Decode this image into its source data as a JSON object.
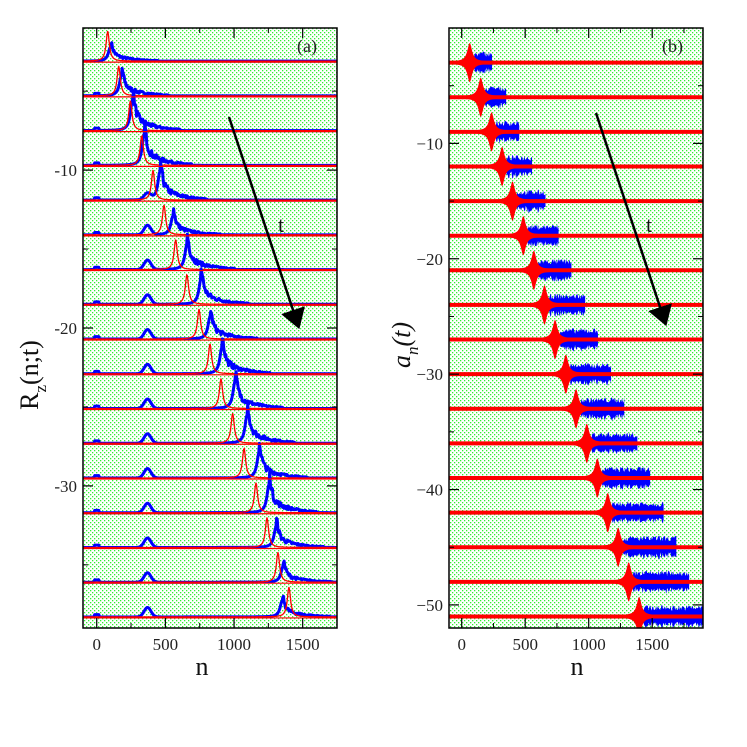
{
  "colors": {
    "background_dots": "#33ee33",
    "red_series": "#ff0000",
    "blue_series": "#0000ff",
    "arrow": "#000000"
  },
  "chart_data": [
    {
      "type": "line",
      "panel_label": "(a)",
      "xlabel": "n",
      "ylabel": "R",
      "ylabel_sub": "z",
      "ylabel_args": "(n;t)",
      "xlim": [
        -100,
        1750
      ],
      "ylim": [
        -39,
        -1
      ],
      "x_ticks": [
        0,
        500,
        1000,
        1500
      ],
      "x_tick_labels": [
        "0",
        "500",
        "1000",
        "1500"
      ],
      "x_minor_ticks": [
        250,
        750,
        1250
      ],
      "y_ticks": [
        -10,
        -20,
        -30
      ],
      "y_tick_labels": [
        "-10",
        "-20",
        "-30"
      ],
      "y_minor_ticks": [
        -5,
        -15,
        -25,
        -35
      ],
      "background": "dotted-green",
      "annotation": {
        "text": "t",
        "arrow": "down-right"
      },
      "traces": {
        "offsets": [
          -3.1,
          -5.3,
          -7.5,
          -9.7,
          -11.9,
          -14.1,
          -16.3,
          -18.5,
          -20.7,
          -22.9,
          -25.1,
          -27.3,
          -29.5,
          -31.7,
          -33.9,
          -36.1,
          -38.3
        ],
        "red_center": [
          80,
          160,
          245,
          328,
          410,
          490,
          575,
          657,
          745,
          825,
          905,
          990,
          1073,
          1160,
          1240,
          1320,
          1400
        ],
        "red_height": [
          1.9,
          1.9,
          1.9,
          1.9,
          1.9,
          1.9,
          1.9,
          1.9,
          1.9,
          1.9,
          1.9,
          1.9,
          1.9,
          1.9,
          1.9,
          1.9,
          1.9
        ],
        "blue_center": [
          100,
          180,
          260,
          345,
          460,
          555,
          657,
          759,
          825,
          912,
          1007,
          1095,
          1182,
          1255,
          1306,
          1357,
          1350
        ],
        "blue_height": [
          0.9,
          1.3,
          1.9,
          1.9,
          1.8,
          1.2,
          1.6,
          1.6,
          1.4,
          1.7,
          1.7,
          1.8,
          1.6,
          1.8,
          1.3,
          1.0,
          1.0
        ],
        "blue_bump_center": 370,
        "blue_bump_height": [
          0,
          0,
          0,
          0,
          0.4,
          0.6,
          0.6,
          0.6,
          0.6,
          0.6,
          0.6,
          0.6,
          0.6,
          0.6,
          0.6,
          0.6,
          0.6
        ]
      }
    },
    {
      "type": "line",
      "panel_label": "(b)",
      "xlabel": "n",
      "ylabel": "a",
      "ylabel_sub": "n",
      "ylabel_args": "(t)",
      "xlim": [
        -100,
        1900
      ],
      "ylim": [
        -52,
        0
      ],
      "x_ticks": [
        0,
        500,
        1000,
        1500
      ],
      "x_tick_labels": [
        "0",
        "500",
        "1000",
        "1500"
      ],
      "x_minor_ticks": [
        250,
        750,
        1250,
        1750
      ],
      "y_ticks": [
        -10,
        -20,
        -30,
        -40,
        -50
      ],
      "y_tick_labels": [
        "−10",
        "−20",
        "−30",
        "−40",
        "−50"
      ],
      "y_minor_ticks": [
        -5,
        -15,
        -25,
        -35,
        -45
      ],
      "background": "dotted-green",
      "annotation": {
        "text": "t",
        "arrow": "down-right"
      },
      "traces": {
        "offsets": [
          -3,
          -6,
          -9,
          -12,
          -15,
          -18,
          -21,
          -24,
          -27,
          -30,
          -33,
          -36,
          -39,
          -42,
          -45,
          -48,
          -51
        ],
        "red_center": [
          63,
          150,
          235,
          318,
          400,
          485,
          568,
          652,
          735,
          820,
          900,
          985,
          1068,
          1150,
          1232,
          1315,
          1397
        ],
        "red_amplitude": 1.6,
        "blue_extent": [
          180,
          200,
          220,
          240,
          260,
          280,
          300,
          320,
          340,
          360,
          380,
          400,
          420,
          440,
          460,
          480,
          500
        ],
        "blue_amplitude": 1.0
      }
    }
  ]
}
